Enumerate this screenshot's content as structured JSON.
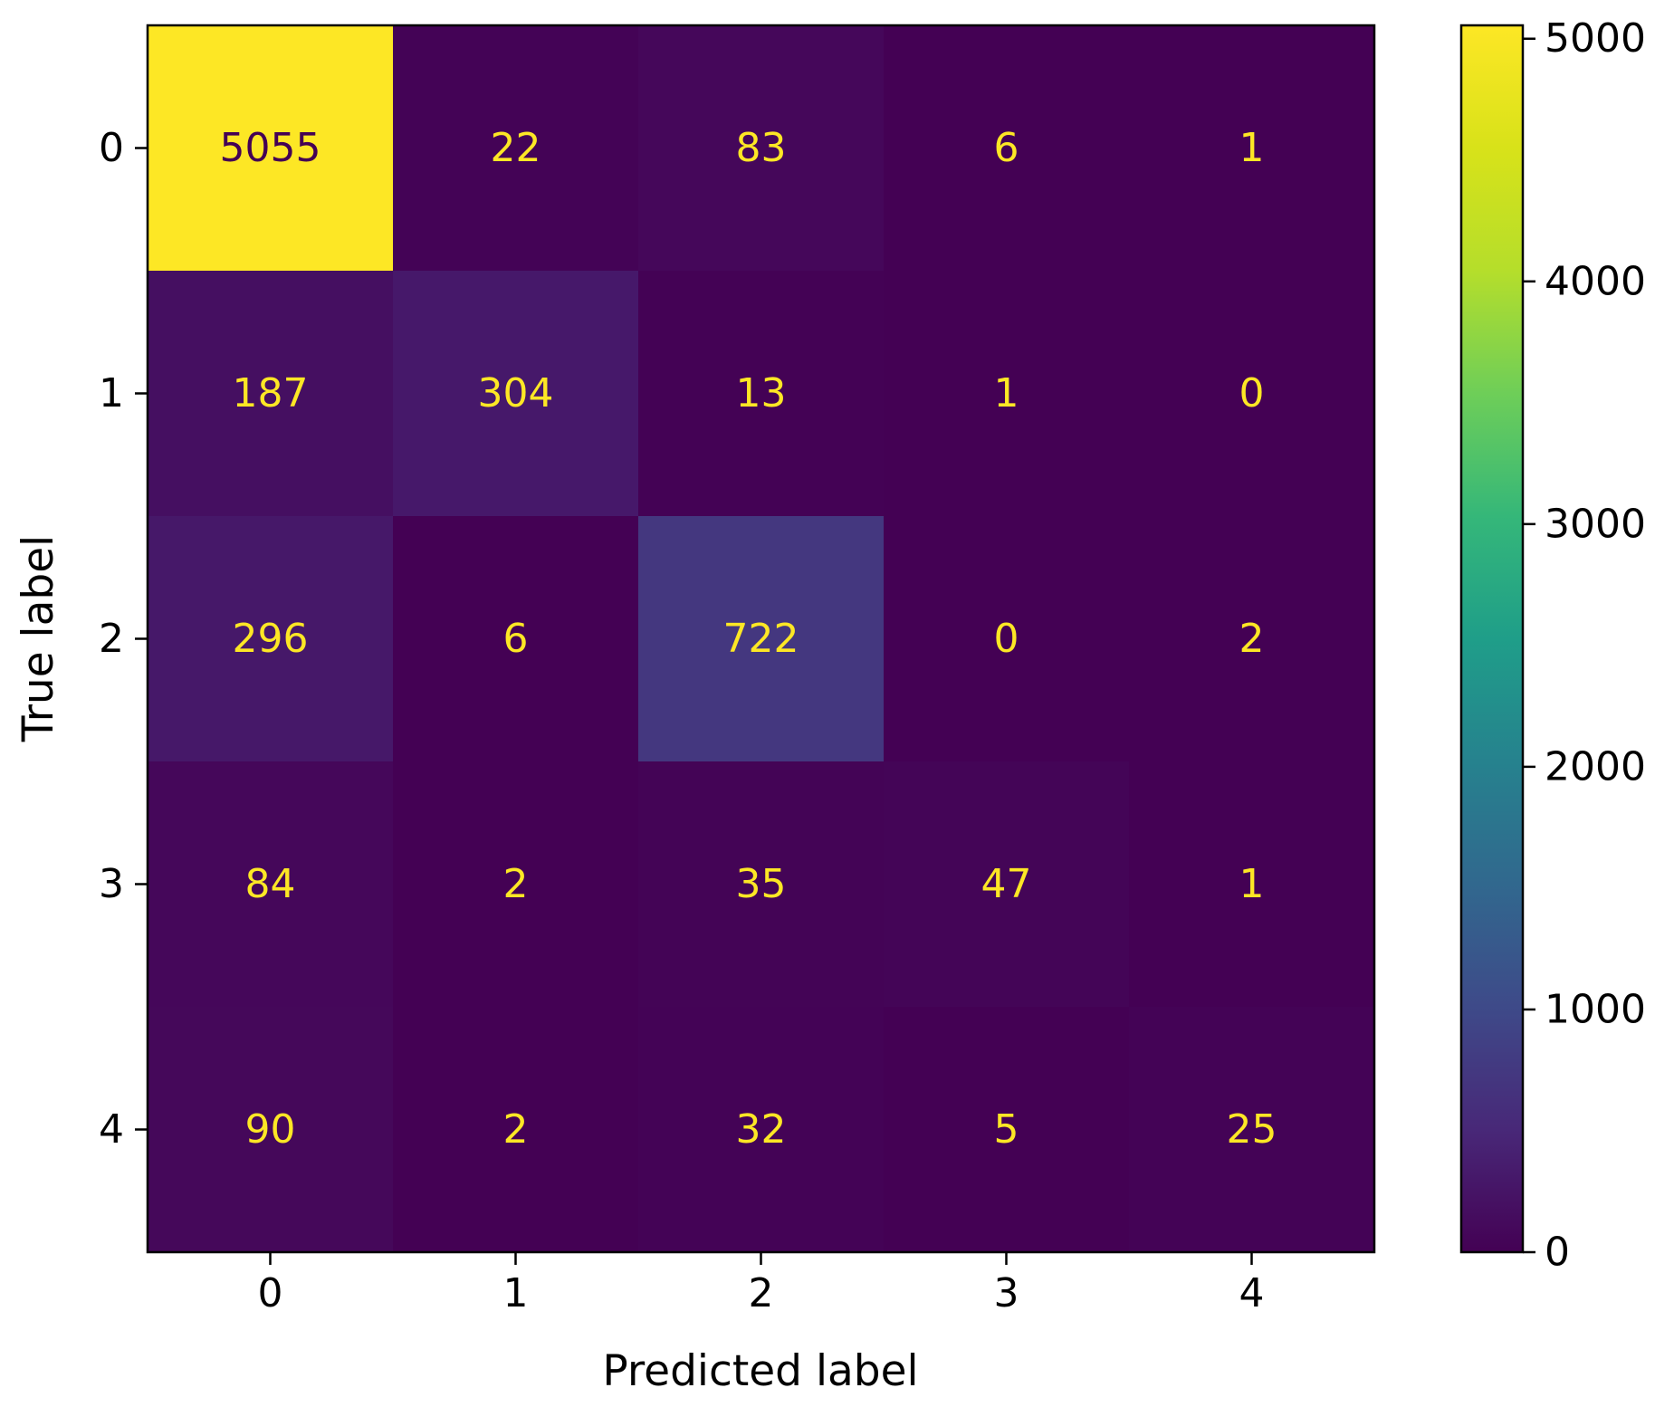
{
  "chart_data": {
    "type": "heatmap",
    "title": "",
    "xlabel": "Predicted label",
    "ylabel": "True label",
    "x_categories": [
      "0",
      "1",
      "2",
      "3",
      "4"
    ],
    "y_categories": [
      "0",
      "1",
      "2",
      "3",
      "4"
    ],
    "matrix": [
      [
        5055,
        22,
        83,
        6,
        1
      ],
      [
        187,
        304,
        13,
        1,
        0
      ],
      [
        296,
        6,
        722,
        0,
        2
      ],
      [
        84,
        2,
        35,
        47,
        1
      ],
      [
        90,
        2,
        32,
        5,
        25
      ]
    ],
    "colormap": "viridis",
    "color_range": [
      0,
      5055
    ],
    "colorbar_ticks": [
      "0",
      "1000",
      "2000",
      "3000",
      "4000",
      "5000"
    ],
    "colorbar_tick_values": [
      0,
      1000,
      2000,
      3000,
      4000,
      5000
    ],
    "text_color_light": "#fde725",
    "text_color_dark": "#440154",
    "grid": false
  }
}
